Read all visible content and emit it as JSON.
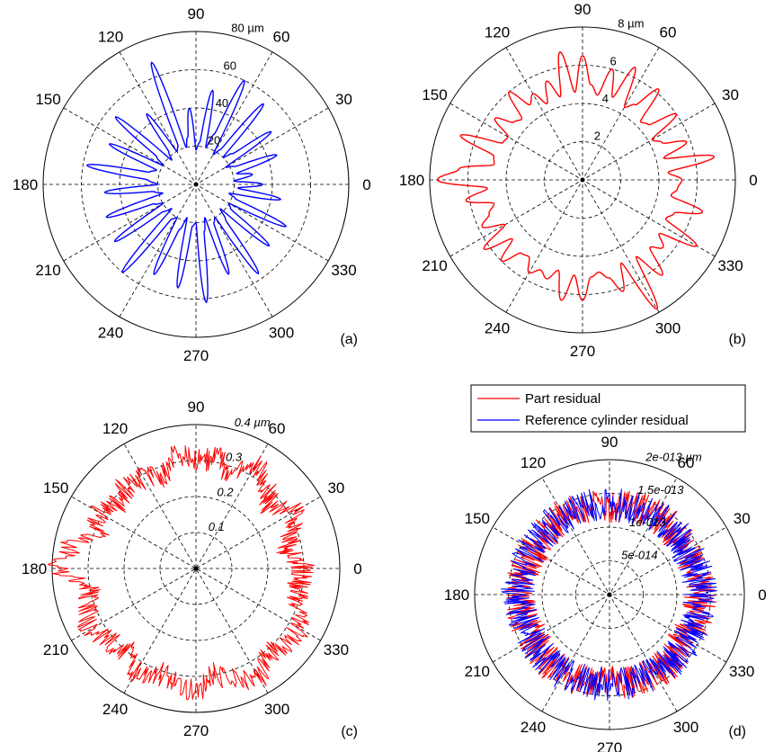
{
  "chart_data": [
    {
      "type": "polar",
      "panel_label": "(a)",
      "angle_labels": [
        "0",
        "30",
        "60",
        "90",
        "120",
        "150",
        "180",
        "210",
        "240",
        "270",
        "300",
        "330"
      ],
      "radial_ticks": [
        20,
        40,
        60,
        80
      ],
      "radial_tick_labels": [
        "20",
        "40",
        "60",
        "80 µm"
      ],
      "radial_labels_italic": false,
      "rmax": 80,
      "series": [
        {
          "color": "#0000ff",
          "theta_deg": [
            0,
            5,
            10,
            15,
            20,
            25,
            30,
            35,
            40,
            45,
            50,
            55,
            60,
            65,
            70,
            75,
            80,
            85,
            90,
            95,
            100,
            105,
            110,
            115,
            120,
            125,
            130,
            135,
            140,
            145,
            150,
            155,
            160,
            165,
            170,
            175,
            180,
            185,
            190,
            195,
            200,
            205,
            210,
            215,
            220,
            225,
            230,
            235,
            240,
            245,
            250,
            255,
            260,
            265,
            270,
            275,
            280,
            285,
            290,
            295,
            300,
            305,
            310,
            315,
            320,
            325,
            330,
            335,
            340,
            345,
            350,
            355
          ],
          "r": [
            35,
            20,
            30,
            22,
            45,
            22,
            18,
            48,
            25,
            20,
            55,
            22,
            18,
            60,
            28,
            20,
            50,
            22,
            18,
            40,
            25,
            20,
            68,
            22,
            20,
            45,
            22,
            18,
            55,
            25,
            20,
            50,
            22,
            25,
            58,
            25,
            20,
            48,
            22,
            18,
            50,
            24,
            20,
            52,
            22,
            18,
            60,
            22,
            20,
            52,
            25,
            18,
            55,
            22,
            20,
            62,
            25,
            18,
            50,
            22,
            20,
            57,
            24,
            18,
            50,
            22,
            20,
            52,
            22,
            18,
            45,
            22
          ]
        }
      ]
    },
    {
      "type": "polar",
      "panel_label": "(b)",
      "angle_labels": [
        "0",
        "30",
        "60",
        "90",
        "120",
        "150",
        "180",
        "210",
        "240",
        "270",
        "300",
        "330"
      ],
      "radial_ticks": [
        2,
        4,
        6,
        8
      ],
      "radial_tick_labels": [
        "2",
        "4",
        "6",
        "8 µm"
      ],
      "radial_labels_italic": false,
      "rmax": 8,
      "series": [
        {
          "color": "#ff0000",
          "theta_deg": [
            0,
            5,
            10,
            15,
            20,
            25,
            30,
            35,
            40,
            45,
            50,
            55,
            60,
            65,
            70,
            75,
            80,
            85,
            90,
            95,
            100,
            105,
            110,
            115,
            120,
            125,
            130,
            135,
            140,
            145,
            150,
            155,
            160,
            165,
            170,
            175,
            180,
            185,
            190,
            195,
            200,
            205,
            210,
            215,
            220,
            225,
            230,
            235,
            240,
            245,
            250,
            255,
            260,
            265,
            270,
            275,
            280,
            285,
            290,
            295,
            300,
            305,
            310,
            315,
            320,
            325,
            330,
            335,
            340,
            345,
            350,
            355
          ],
          "r": [
            5.2,
            4.5,
            7.0,
            4.4,
            5.8,
            4.6,
            4.2,
            6.0,
            4.5,
            4.3,
            6.2,
            4.8,
            4.4,
            6.5,
            4.6,
            6.0,
            4.5,
            5.0,
            6.5,
            4.6,
            6.8,
            4.5,
            5.5,
            4.4,
            5.2,
            4.8,
            6.0,
            4.5,
            4.7,
            5.6,
            4.5,
            4.6,
            6.8,
            4.8,
            4.7,
            6.5,
            7.6,
            5.0,
            6.2,
            4.8,
            5.2,
            5.8,
            4.7,
            6.3,
            4.8,
            6.0,
            5.0,
            4.9,
            5.6,
            5.2,
            5.5,
            4.9,
            6.4,
            5.0,
            6.3,
            5.1,
            4.9,
            5.3,
            6.2,
            4.8,
            7.8,
            4.9,
            6.5,
            5.0,
            5.5,
            4.9,
            6.9,
            4.8,
            5.1,
            6.5,
            4.7,
            5.0
          ]
        }
      ]
    },
    {
      "type": "polar",
      "panel_label": "(c)",
      "angle_labels": [
        "0",
        "30",
        "60",
        "90",
        "120",
        "150",
        "180",
        "210",
        "240",
        "270",
        "300",
        "330"
      ],
      "radial_ticks": [
        0.1,
        0.2,
        0.3,
        0.4
      ],
      "radial_tick_labels": [
        "0.1",
        "0.2",
        "0.3",
        "0.4 µm"
      ],
      "radial_labels_italic": true,
      "rmax": 0.4,
      "series": [
        {
          "color": "#ff0000",
          "noise": 0.035,
          "theta_deg": [
            0,
            10,
            20,
            30,
            40,
            50,
            60,
            70,
            80,
            90,
            100,
            110,
            120,
            130,
            140,
            150,
            160,
            170,
            180,
            190,
            200,
            210,
            220,
            230,
            240,
            250,
            260,
            270,
            280,
            290,
            300,
            310,
            320,
            330,
            340,
            350
          ],
          "r": [
            0.3,
            0.26,
            0.28,
            0.32,
            0.27,
            0.3,
            0.33,
            0.28,
            0.31,
            0.3,
            0.32,
            0.27,
            0.29,
            0.3,
            0.28,
            0.31,
            0.29,
            0.35,
            0.38,
            0.3,
            0.32,
            0.34,
            0.31,
            0.3,
            0.33,
            0.31,
            0.32,
            0.34,
            0.3,
            0.33,
            0.35,
            0.31,
            0.32,
            0.33,
            0.3,
            0.29
          ]
        }
      ]
    },
    {
      "type": "polar",
      "panel_label": "(d)",
      "angle_labels": [
        "0",
        "30",
        "60",
        "90",
        "120",
        "150",
        "180",
        "210",
        "240",
        "270",
        "300",
        "330"
      ],
      "radial_ticks": [
        5e-14,
        1e-13,
        1.5e-13,
        2e-13
      ],
      "radial_tick_labels": [
        "5e-014",
        "1e-013",
        "1.5e-013",
        "2e-013 µm"
      ],
      "radial_labels_italic": true,
      "rmax": 2e-13,
      "legend": {
        "position": "top-right",
        "entries": [
          {
            "label": "Part residual",
            "color": "#ff0000"
          },
          {
            "label": "Reference cylinder residual",
            "color": "#0000ff"
          }
        ]
      },
      "series": [
        {
          "color": "#ff0000",
          "noise": 2.5e-14,
          "theta_deg": [
            0,
            30,
            60,
            90,
            120,
            150,
            180,
            210,
            240,
            270,
            300,
            330
          ],
          "r": [
            1.35e-13,
            1.3e-13,
            1.35e-13,
            1.3e-13,
            1.35e-13,
            1.3e-13,
            1.35e-13,
            1.3e-13,
            1.35e-13,
            1.3e-13,
            1.35e-13,
            1.3e-13
          ]
        },
        {
          "color": "#0000ff",
          "noise": 2.5e-14,
          "theta_deg": [
            0,
            30,
            60,
            90,
            120,
            150,
            180,
            210,
            240,
            270,
            300,
            330
          ],
          "r": [
            1.35e-13,
            1.32e-13,
            1.35e-13,
            1.33e-13,
            1.35e-13,
            1.33e-13,
            1.36e-13,
            1.33e-13,
            1.35e-13,
            1.33e-13,
            1.35e-13,
            1.33e-13
          ]
        }
      ]
    }
  ]
}
